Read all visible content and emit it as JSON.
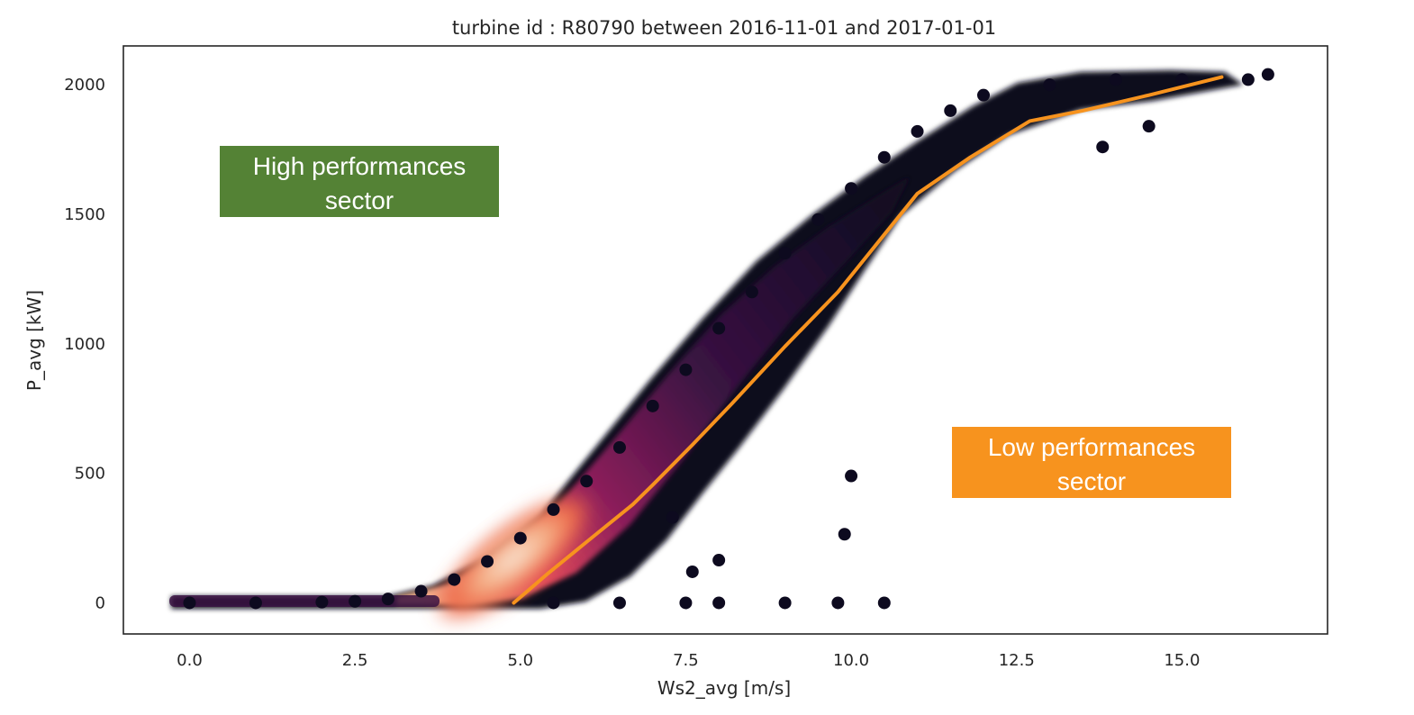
{
  "chart_data": {
    "type": "scatter",
    "title": "turbine id : R80790 between 2016-11-01 and 2017-01-01",
    "xlabel": "Ws2_avg [m/s]",
    "ylabel": "P_avg [kW]",
    "xlim": [
      -1.0,
      17.2
    ],
    "ylim": [
      -120,
      2150
    ],
    "xticks": [
      0.0,
      2.5,
      5.0,
      7.5,
      10.0,
      12.5,
      15.0
    ],
    "xtick_labels": [
      "0.0",
      "2.5",
      "5.0",
      "7.5",
      "10.0",
      "12.5",
      "15.0"
    ],
    "yticks": [
      0,
      500,
      1000,
      1500,
      2000
    ],
    "ytick_labels": [
      "0",
      "500",
      "1000",
      "1500",
      "2000"
    ],
    "grid": false,
    "colormap": "rocket (density: dark purple low, cream high)",
    "colors": {
      "low_density": "#0d0a1f",
      "mid_density": "#8a1d5a",
      "high_density": "#f07a48",
      "peak_density": "#f9e3d0",
      "reference_curve": "#f7931e",
      "high_box": "#548235",
      "low_box": "#f7931e"
    },
    "series": [
      {
        "kind": "density-scatter",
        "points_approx": [
          [
            0.0,
            0
          ],
          [
            1.0,
            0
          ],
          [
            2.0,
            3
          ],
          [
            2.5,
            6
          ],
          [
            3.0,
            15
          ],
          [
            3.5,
            45
          ],
          [
            4.0,
            90
          ],
          [
            4.5,
            160
          ],
          [
            5.0,
            250
          ],
          [
            5.5,
            360
          ],
          [
            6.0,
            470
          ],
          [
            6.5,
            600
          ],
          [
            7.0,
            760
          ],
          [
            7.5,
            900
          ],
          [
            8.0,
            1060
          ],
          [
            8.5,
            1200
          ],
          [
            9.0,
            1350
          ],
          [
            9.5,
            1480
          ],
          [
            10.0,
            1600
          ],
          [
            10.5,
            1720
          ],
          [
            11.0,
            1820
          ],
          [
            11.5,
            1900
          ],
          [
            12.0,
            1960
          ],
          [
            13.0,
            2000
          ],
          [
            14.0,
            2020
          ],
          [
            15.0,
            2020
          ],
          [
            16.0,
            2020
          ],
          [
            5.5,
            0
          ],
          [
            6.5,
            0
          ],
          [
            7.5,
            0
          ],
          [
            8.0,
            0
          ],
          [
            9.0,
            0
          ],
          [
            9.8,
            0
          ],
          [
            10.5,
            0
          ],
          [
            10.0,
            490
          ],
          [
            9.9,
            265
          ],
          [
            7.3,
            330
          ],
          [
            7.6,
            120
          ],
          [
            8.0,
            165
          ],
          [
            13.8,
            1760
          ],
          [
            14.5,
            1840
          ],
          [
            16.3,
            2040
          ]
        ]
      },
      {
        "kind": "reference-curve",
        "x": [
          4.9,
          5.4,
          6.0,
          6.7,
          7.0,
          7.6,
          8.2,
          9.0,
          9.8,
          10.4,
          11.0,
          11.8,
          12.7,
          13.5,
          14.5,
          15.6
        ],
        "y": [
          0,
          110,
          235,
          380,
          455,
          610,
          770,
          990,
          1200,
          1390,
          1580,
          1720,
          1860,
          1900,
          1960,
          2030
        ]
      }
    ],
    "annotations": [
      {
        "text": [
          "High performances",
          "sector"
        ]
      },
      {
        "text": [
          "Low performances",
          "sector"
        ]
      }
    ]
  }
}
